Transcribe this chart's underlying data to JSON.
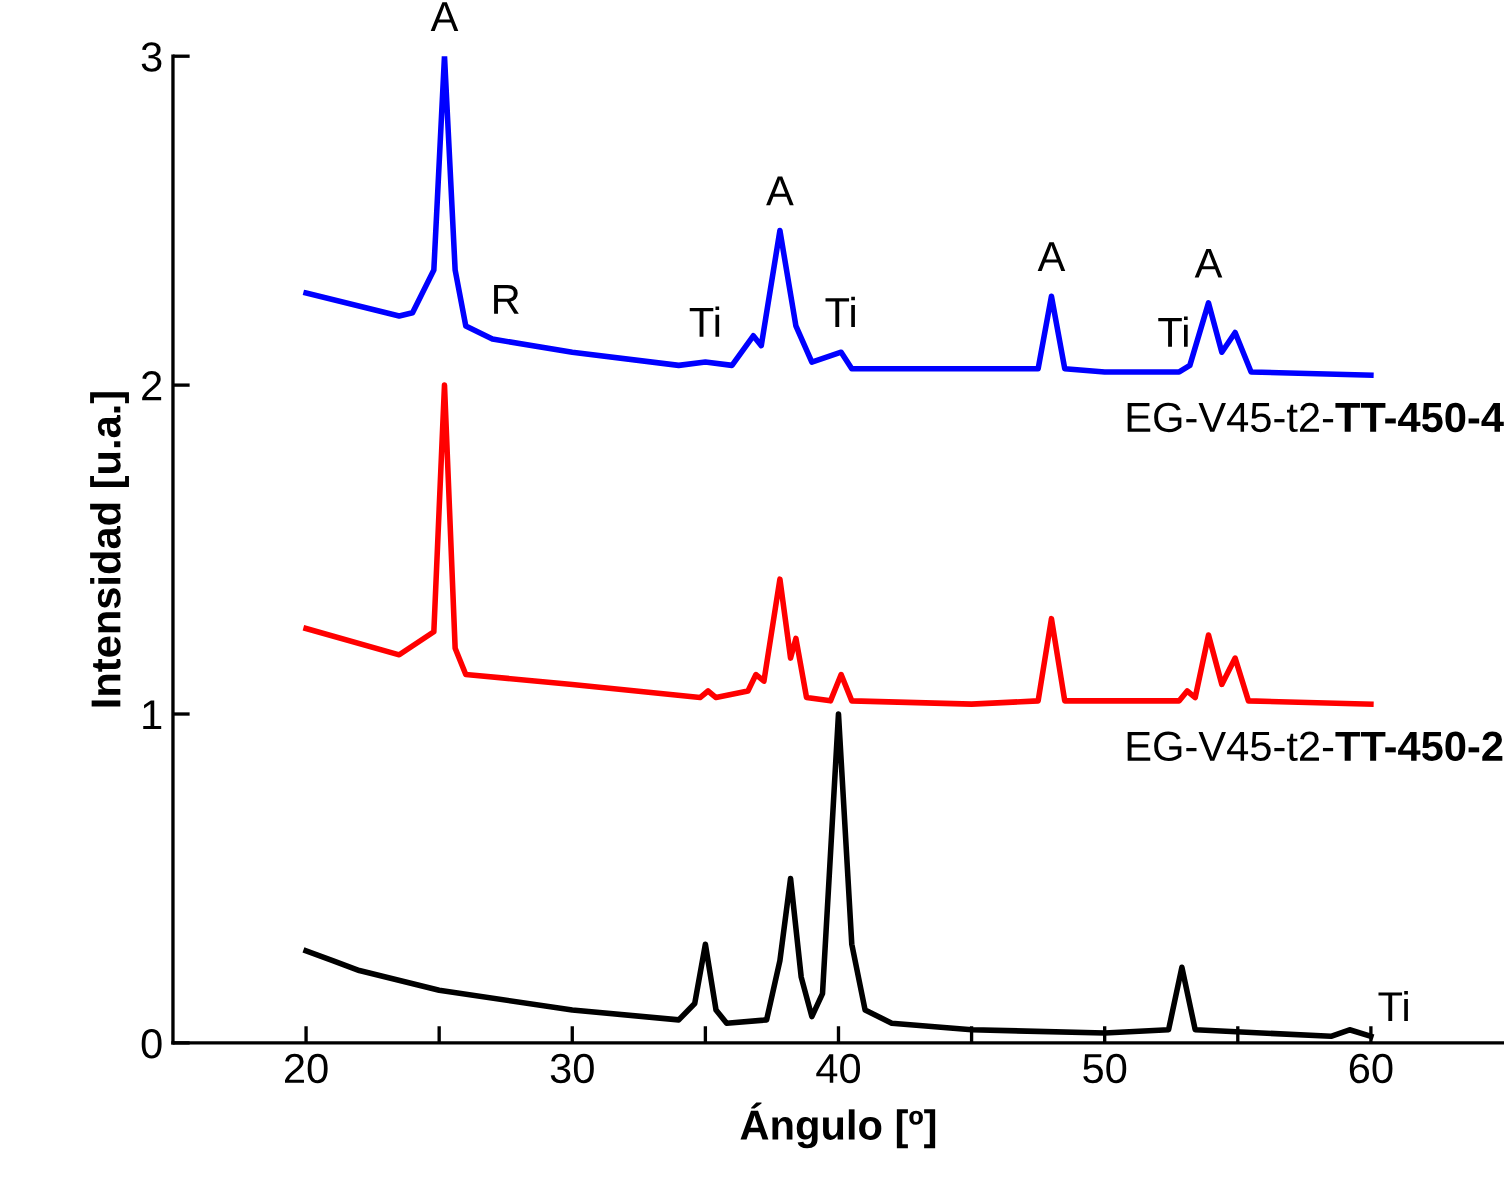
{
  "chart_data": {
    "type": "line",
    "xlabel": "Ángulo [º]",
    "ylabel": "Intensidad [u.a.]",
    "xlim": [
      15,
      65
    ],
    "ylim": [
      0,
      3
    ],
    "xticks": [
      20,
      {
        "value": 25,
        "label": null
      },
      30,
      {
        "value": 35,
        "label": null
      },
      40,
      {
        "value": 45,
        "label": null
      },
      50,
      {
        "value": 55,
        "label": null
      },
      60
    ],
    "yticks": [
      0,
      1,
      2,
      3
    ],
    "grid": false,
    "legend": false,
    "marker": "none",
    "line_style": "solid",
    "series": [
      {
        "name": "EG-V45-t2-TT-450-4",
        "color": "#0000ff",
        "x": [
          20,
          23.5,
          24,
          24.8,
          25.2,
          25.6,
          26,
          27,
          30,
          34,
          35,
          36,
          36.8,
          37.1,
          37.8,
          38.4,
          39,
          40.1,
          40.5,
          45,
          47.5,
          48,
          48.5,
          50,
          52.8,
          53.2,
          53.9,
          54.4,
          54.9,
          55.5,
          60
        ],
        "values": [
          2.28,
          2.21,
          2.22,
          2.35,
          3.0,
          2.35,
          2.18,
          2.14,
          2.1,
          2.06,
          2.07,
          2.06,
          2.15,
          2.12,
          2.47,
          2.18,
          2.07,
          2.1,
          2.05,
          2.05,
          2.05,
          2.27,
          2.05,
          2.04,
          2.04,
          2.06,
          2.25,
          2.1,
          2.16,
          2.04,
          2.03
        ]
      },
      {
        "name": "EG-V45-t2-TT-450-2",
        "color": "#ff0000",
        "x": [
          20,
          23.5,
          24.8,
          25.2,
          25.6,
          26,
          30,
          34.8,
          35.1,
          35.4,
          36.6,
          36.9,
          37.2,
          37.8,
          38.2,
          38.4,
          38.8,
          39.7,
          40.1,
          40.5,
          45,
          47.5,
          48,
          48.5,
          52.8,
          53.1,
          53.4,
          53.9,
          54.4,
          54.9,
          55.4,
          60
        ],
        "values": [
          1.26,
          1.18,
          1.25,
          2.0,
          1.2,
          1.12,
          1.09,
          1.05,
          1.07,
          1.05,
          1.07,
          1.12,
          1.1,
          1.41,
          1.17,
          1.23,
          1.05,
          1.04,
          1.12,
          1.04,
          1.03,
          1.04,
          1.29,
          1.04,
          1.04,
          1.07,
          1.05,
          1.24,
          1.09,
          1.17,
          1.04,
          1.03
        ]
      },
      {
        "name": "Ti",
        "color": "#000000",
        "x": [
          20,
          21,
          22,
          25,
          30,
          34,
          34.6,
          35,
          35.4,
          35.8,
          37.3,
          37.8,
          38.2,
          38.6,
          39.0,
          39.4,
          40.0,
          40.5,
          41,
          42,
          45,
          50,
          52.4,
          52.9,
          53.4,
          58.5,
          59.2,
          60
        ],
        "values": [
          0.28,
          0.25,
          0.22,
          0.16,
          0.1,
          0.07,
          0.12,
          0.3,
          0.1,
          0.06,
          0.07,
          0.25,
          0.5,
          0.2,
          0.08,
          0.15,
          1.0,
          0.3,
          0.1,
          0.06,
          0.04,
          0.03,
          0.04,
          0.23,
          0.04,
          0.02,
          0.04,
          0.02
        ]
      }
    ],
    "annotations": [
      {
        "text": "A",
        "x": 25.2,
        "y": 3.0
      },
      {
        "text": "R",
        "x": 27.5,
        "y": 2.14
      },
      {
        "text": "Ti",
        "x": 35,
        "y": 2.07
      },
      {
        "text": "A",
        "x": 37.8,
        "y": 2.47
      },
      {
        "text": "Ti",
        "x": 40.1,
        "y": 2.1
      },
      {
        "text": "A",
        "x": 48,
        "y": 2.27
      },
      {
        "text": "Ti",
        "x": 52.6,
        "y": 2.04
      },
      {
        "text": "A",
        "x": 53.9,
        "y": 2.25
      }
    ]
  }
}
